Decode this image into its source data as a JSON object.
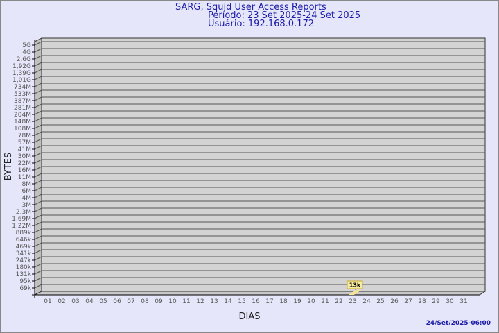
{
  "header": {
    "title": "SARG, Squid User Access Reports",
    "period": "Período: 23 Set 2025-24 Set 2025",
    "user": "Usuário: 192.168.0.172"
  },
  "footer": {
    "timestamp": "24/Set/2025-06:00"
  },
  "colors": {
    "background": "#e6e6fa",
    "title": "#1c1ca8",
    "wall": "#d3d3d3",
    "side": "#c0c0c0",
    "bar": "#f5e39a"
  },
  "chart_data": {
    "type": "bar",
    "title": "SARG, Squid User Access Reports",
    "xlabel": "DIAS",
    "ylabel": "BYTES",
    "y_scale": "log",
    "grid": true,
    "y_ticks": [
      "69k",
      "95k",
      "131k",
      "180k",
      "247k",
      "341k",
      "469k",
      "646k",
      "889k",
      "1,22M",
      "1,69M",
      "2,3M",
      "3M",
      "4M",
      "6M",
      "8M",
      "11M",
      "16M",
      "22M",
      "30M",
      "41M",
      "57M",
      "78M",
      "108M",
      "148M",
      "204M",
      "281M",
      "387M",
      "533M",
      "734M",
      "1,01G",
      "1,39G",
      "1,92G",
      "2,6G",
      "4G",
      "5G"
    ],
    "categories": [
      "01",
      "02",
      "03",
      "04",
      "05",
      "06",
      "07",
      "08",
      "09",
      "10",
      "11",
      "12",
      "13",
      "14",
      "15",
      "16",
      "17",
      "18",
      "19",
      "20",
      "21",
      "22",
      "23",
      "24",
      "25",
      "26",
      "27",
      "28",
      "29",
      "30",
      "31"
    ],
    "series": [
      {
        "points": [
          {
            "x": "23",
            "y": 13000,
            "label": "13k"
          }
        ]
      }
    ]
  }
}
